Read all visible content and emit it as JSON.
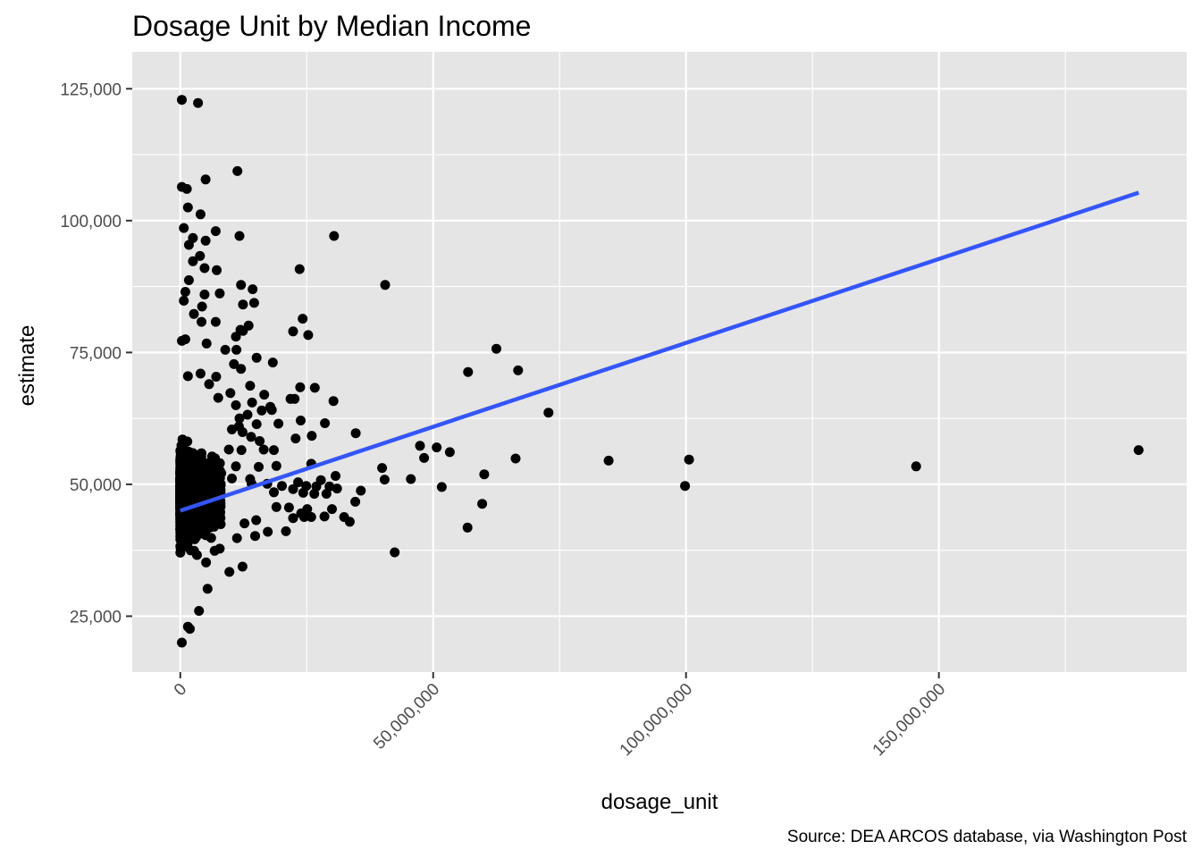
{
  "chart_data": {
    "type": "scatter",
    "title": "Dosage Unit by Median Income",
    "xlabel": "dosage_unit",
    "ylabel": "estimate",
    "caption": "Source: DEA ARCOS database, via Washington Post",
    "xlim": [
      -9500000,
      199000000
    ],
    "ylim": [
      14400.0,
      132000
    ],
    "x_ticks": [
      0,
      50000000,
      100000000,
      150000000
    ],
    "x_tick_labels": [
      "0",
      "50,000,000",
      "100,000,000",
      "150,000,000"
    ],
    "x_tick_label_angle": -45,
    "y_ticks": [
      25000,
      50000,
      75000,
      100000,
      125000
    ],
    "y_tick_labels": [
      "25,000",
      "50,000",
      "75,000",
      "100,000",
      "125,000"
    ],
    "grid": true,
    "legend": "none",
    "colors": {
      "panel_background": "#e5e5e5",
      "grid": "#ffffff",
      "point": "#000000",
      "fit_line": "#3355ff",
      "tick_text": "#4d4d4d"
    },
    "fit_line": {
      "method": "lm",
      "x": [
        0,
        189500000
      ],
      "y": [
        45000,
        105300
      ]
    },
    "series": [
      {
        "points": [
          [
            300000,
            122900
          ],
          [
            3500000,
            122300
          ],
          [
            11300000,
            109400
          ],
          [
            5000000,
            107800
          ],
          [
            300000,
            106400
          ],
          [
            1300000,
            106000
          ],
          [
            4000000,
            101200
          ],
          [
            1500000,
            102500
          ],
          [
            7000000,
            98000
          ],
          [
            700000,
            98600
          ],
          [
            11700000,
            97100
          ],
          [
            30400000,
            97100
          ],
          [
            1700000,
            95400
          ],
          [
            2500000,
            96700
          ],
          [
            5000000,
            96200
          ],
          [
            3900000,
            93300
          ],
          [
            2500000,
            92300
          ],
          [
            23600000,
            90800
          ],
          [
            7200000,
            90600
          ],
          [
            4800000,
            91000
          ],
          [
            1700000,
            88700
          ],
          [
            40500000,
            87800
          ],
          [
            12000000,
            87800
          ],
          [
            14300000,
            87000
          ],
          [
            7800000,
            86200
          ],
          [
            4800000,
            86000
          ],
          [
            1000000,
            86500
          ],
          [
            700000,
            84800
          ],
          [
            12400000,
            84100
          ],
          [
            14600000,
            84400
          ],
          [
            4300000,
            83700
          ],
          [
            2700000,
            82300
          ],
          [
            24200000,
            81400
          ],
          [
            7000000,
            80800
          ],
          [
            4200000,
            80800
          ],
          [
            13500000,
            80100
          ],
          [
            11900000,
            79300
          ],
          [
            12400000,
            79100
          ],
          [
            22300000,
            79000
          ],
          [
            25300000,
            78300
          ],
          [
            11000000,
            78000
          ],
          [
            1000000,
            77500
          ],
          [
            300000,
            77200
          ],
          [
            5200000,
            76700
          ],
          [
            8900000,
            75500
          ],
          [
            11100000,
            75500
          ],
          [
            15100000,
            74000
          ],
          [
            18300000,
            73100
          ],
          [
            62500000,
            75700
          ],
          [
            56900000,
            71300
          ],
          [
            66800000,
            71600
          ],
          [
            10600000,
            72800
          ],
          [
            12000000,
            71900
          ],
          [
            7100000,
            70400
          ],
          [
            4000000,
            71000
          ],
          [
            1500000,
            70500
          ],
          [
            5700000,
            69000
          ],
          [
            13800000,
            68700
          ],
          [
            23700000,
            68400
          ],
          [
            26600000,
            68300
          ],
          [
            16600000,
            67000
          ],
          [
            30300000,
            65800
          ],
          [
            21800000,
            66200
          ],
          [
            22600000,
            66200
          ],
          [
            18100000,
            64100
          ],
          [
            17800000,
            64700
          ],
          [
            7500000,
            66400
          ],
          [
            9900000,
            67300
          ],
          [
            11000000,
            65000
          ],
          [
            14200000,
            65500
          ],
          [
            16100000,
            64000
          ],
          [
            72800000,
            63600
          ],
          [
            13300000,
            63200
          ],
          [
            11700000,
            62500
          ],
          [
            23800000,
            62100
          ],
          [
            28600000,
            61600
          ],
          [
            19400000,
            61500
          ],
          [
            15100000,
            61400
          ],
          [
            11600000,
            61000
          ],
          [
            10200000,
            60400
          ],
          [
            12300000,
            59900
          ],
          [
            34700000,
            59700
          ],
          [
            26000000,
            59200
          ],
          [
            14000000,
            59000
          ],
          [
            22800000,
            58700
          ],
          [
            15700000,
            58200
          ],
          [
            16500000,
            56600
          ],
          [
            18500000,
            56500
          ],
          [
            9600000,
            56600
          ],
          [
            12100000,
            56500
          ],
          [
            47400000,
            57300
          ],
          [
            50700000,
            57000
          ],
          [
            53300000,
            56100
          ],
          [
            48200000,
            55000
          ],
          [
            66300000,
            54900
          ],
          [
            84700000,
            54500
          ],
          [
            100600000,
            54700
          ],
          [
            145500000,
            53400
          ],
          [
            189500000,
            56500
          ],
          [
            25900000,
            53900
          ],
          [
            19000000,
            53500
          ],
          [
            11000000,
            53400
          ],
          [
            15500000,
            53300
          ],
          [
            39900000,
            53100
          ],
          [
            8100000,
            52100
          ],
          [
            10200000,
            51100
          ],
          [
            13800000,
            51000
          ],
          [
            60100000,
            51900
          ],
          [
            30700000,
            51600
          ],
          [
            40400000,
            50900
          ],
          [
            45600000,
            51000
          ],
          [
            27800000,
            50800
          ],
          [
            23300000,
            50400
          ],
          [
            17200000,
            50100
          ],
          [
            14100000,
            50100
          ],
          [
            20100000,
            49700
          ],
          [
            22300000,
            49100
          ],
          [
            24900000,
            49700
          ],
          [
            26900000,
            49600
          ],
          [
            29500000,
            49600
          ],
          [
            31000000,
            49200
          ],
          [
            51700000,
            49500
          ],
          [
            99800000,
            49700
          ],
          [
            24300000,
            48400
          ],
          [
            26500000,
            48200
          ],
          [
            28900000,
            48200
          ],
          [
            35700000,
            48800
          ],
          [
            18500000,
            48500
          ],
          [
            34600000,
            46700
          ],
          [
            59700000,
            46300
          ],
          [
            21500000,
            45600
          ],
          [
            19000000,
            45700
          ],
          [
            25100000,
            45300
          ],
          [
            30000000,
            45300
          ],
          [
            23900000,
            44500
          ],
          [
            22300000,
            43600
          ],
          [
            24500000,
            43800
          ],
          [
            25900000,
            43800
          ],
          [
            28500000,
            43900
          ],
          [
            32400000,
            43800
          ],
          [
            33500000,
            42900
          ],
          [
            56800000,
            41800
          ],
          [
            20900000,
            41100
          ],
          [
            17300000,
            41000
          ],
          [
            15000000,
            43200
          ],
          [
            12700000,
            42600
          ],
          [
            14800000,
            40200
          ],
          [
            11200000,
            39800
          ],
          [
            7800000,
            37800
          ],
          [
            6800000,
            37400
          ],
          [
            42400000,
            37100
          ],
          [
            3300000,
            36600
          ],
          [
            5100000,
            35200
          ],
          [
            12300000,
            34400
          ],
          [
            9700000,
            33400
          ],
          [
            5400000,
            30200
          ],
          [
            3700000,
            26000
          ],
          [
            1500000,
            23000
          ],
          [
            1900000,
            22600
          ],
          [
            300000,
            20000
          ]
        ]
      }
    ],
    "dense_cluster": {
      "x_min": 0,
      "x_max": 8000000,
      "y_min": 20000,
      "y_max": 85000,
      "y_center": 48000
    }
  }
}
